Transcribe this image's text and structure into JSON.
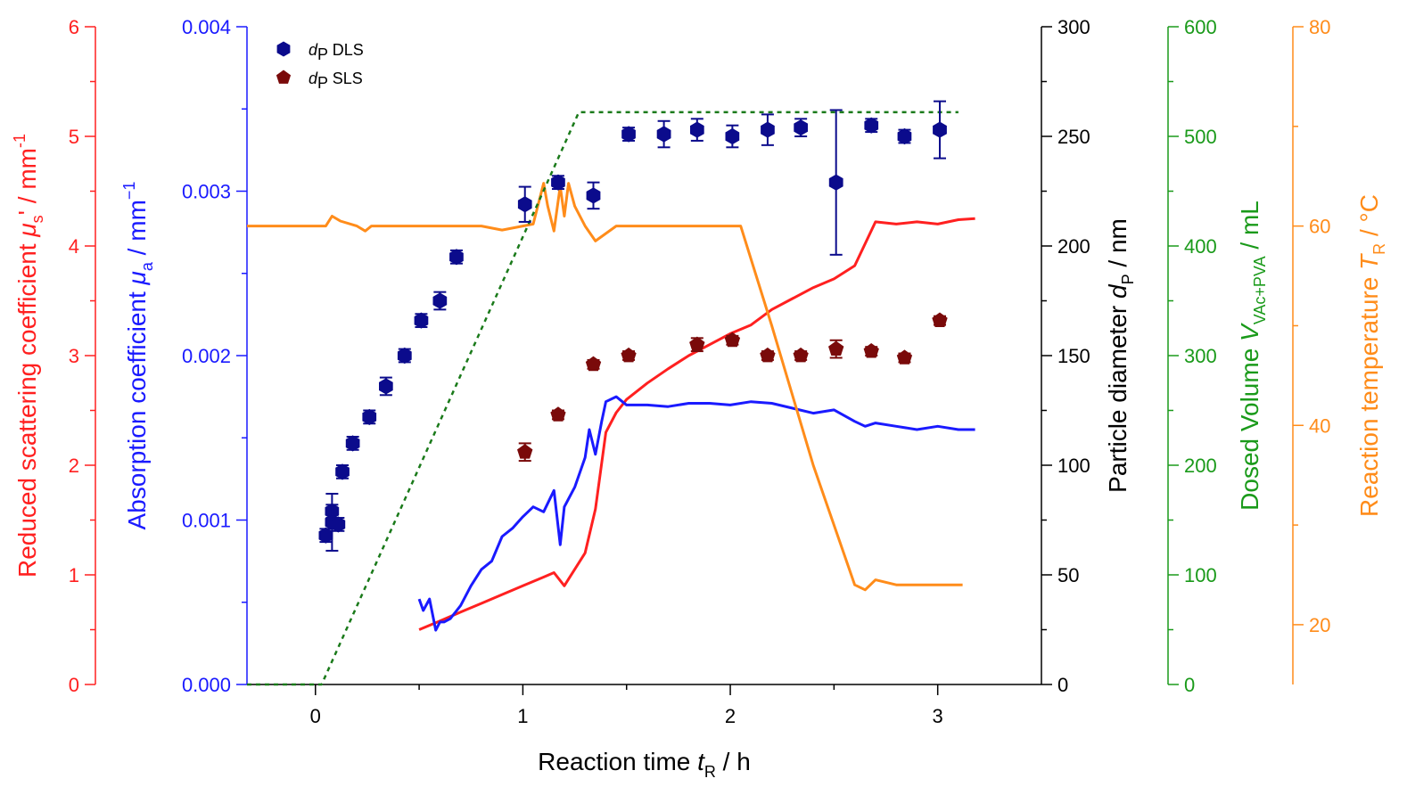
{
  "chart_data": {
    "type": "scatter",
    "title": "",
    "xaxis": {
      "label_main": "Reaction time ",
      "label_var": "t",
      "label_sub": "R",
      "label_unit": " / h",
      "range": [
        -0.33,
        3.5
      ],
      "ticks": [
        "0",
        "1",
        "2",
        "3"
      ]
    },
    "axes": {
      "scatter": {
        "label_main": "Reduced scattering coefficient ",
        "label_var": "μ",
        "label_sub": "s",
        "label_unit": "' / mm",
        "label_sup": "-1",
        "range": [
          0,
          6
        ],
        "ticks": [
          "0",
          "1",
          "2",
          "3",
          "4",
          "5",
          "6"
        ],
        "color": "#ff2020"
      },
      "absorption": {
        "label_main": "Absorption coefficient ",
        "label_var": "μ",
        "label_sub": "a",
        "label_unit": " / mm",
        "label_sup": "−1",
        "range": [
          0,
          0.004
        ],
        "ticks": [
          "0.000",
          "0.001",
          "0.002",
          "0.003",
          "0.004"
        ],
        "color": "#1a1aff"
      },
      "diameter": {
        "label_main": "Particle diameter ",
        "label_var": "d",
        "label_sub": "P",
        "label_unit": " / nm",
        "range": [
          0,
          300
        ],
        "ticks": [
          "0",
          "50",
          "100",
          "150",
          "200",
          "250",
          "300"
        ],
        "color": "#000000"
      },
      "volume": {
        "label_main": "Dosed Volume ",
        "label_var": "V",
        "label_sub": "VAc+PVA",
        "label_unit": " / mL",
        "range": [
          0,
          600
        ],
        "ticks": [
          "0",
          "100",
          "200",
          "300",
          "400",
          "500",
          "600"
        ],
        "color": "#1a9a1a"
      },
      "temperature": {
        "label_main": "Reaction temperature ",
        "label_var": "T",
        "label_sub": "R",
        "label_unit": " / °C",
        "range": [
          14,
          80
        ],
        "ticks": [
          "20",
          "40",
          "60",
          "80"
        ],
        "color": "#ff8c1a"
      }
    },
    "legend": {
      "placement": "top-left",
      "entries": [
        {
          "var": "d",
          "sub": "P",
          "text": " DLS",
          "color": "#0b0b8c",
          "marker": "hexagon"
        },
        {
          "var": "d",
          "sub": "P",
          "text": " SLS",
          "color": "#7a0a0a",
          "marker": "pentagon"
        }
      ]
    },
    "series": [
      {
        "key": "dls",
        "axis": "diameter",
        "color": "#0b0b8c",
        "marker": "hexagon",
        "points": [
          {
            "x": 0.05,
            "y": 68,
            "err": 3
          },
          {
            "x": 0.08,
            "y": 79,
            "err": 3
          },
          {
            "x": 0.08,
            "y": 74,
            "err": 13
          },
          {
            "x": 0.11,
            "y": 73,
            "err": 3
          },
          {
            "x": 0.13,
            "y": 97,
            "err": 3
          },
          {
            "x": 0.18,
            "y": 110,
            "err": 3
          },
          {
            "x": 0.26,
            "y": 122,
            "err": 3
          },
          {
            "x": 0.34,
            "y": 136,
            "err": 4
          },
          {
            "x": 0.43,
            "y": 150,
            "err": 3
          },
          {
            "x": 0.51,
            "y": 166,
            "err": 3
          },
          {
            "x": 0.6,
            "y": 175,
            "err": 4
          },
          {
            "x": 0.68,
            "y": 195,
            "err": 3
          },
          {
            "x": 1.01,
            "y": 219,
            "err": 8
          },
          {
            "x": 1.17,
            "y": 229,
            "err": 3
          },
          {
            "x": 1.34,
            "y": 223,
            "err": 6
          },
          {
            "x": 1.51,
            "y": 251,
            "err": 3
          },
          {
            "x": 1.68,
            "y": 251,
            "err": 6
          },
          {
            "x": 1.84,
            "y": 253,
            "err": 5
          },
          {
            "x": 2.01,
            "y": 250,
            "err": 5
          },
          {
            "x": 2.18,
            "y": 253,
            "err": 7
          },
          {
            "x": 2.34,
            "y": 254,
            "err": 4
          },
          {
            "x": 2.51,
            "y": 229,
            "err": 33
          },
          {
            "x": 2.68,
            "y": 255,
            "err": 3
          },
          {
            "x": 2.84,
            "y": 250,
            "err": 3
          },
          {
            "x": 3.01,
            "y": 253,
            "err": 13
          }
        ]
      },
      {
        "key": "sls",
        "axis": "diameter",
        "color": "#7a0a0a",
        "marker": "pentagon",
        "points": [
          {
            "x": 1.01,
            "y": 106,
            "err": 4
          },
          {
            "x": 1.17,
            "y": 123,
            "err": 2
          },
          {
            "x": 1.34,
            "y": 146,
            "err": 2
          },
          {
            "x": 1.51,
            "y": 150,
            "err": 2
          },
          {
            "x": 1.84,
            "y": 155,
            "err": 3
          },
          {
            "x": 2.01,
            "y": 157,
            "err": 2
          },
          {
            "x": 2.18,
            "y": 150,
            "err": 2
          },
          {
            "x": 2.34,
            "y": 150,
            "err": 2
          },
          {
            "x": 2.51,
            "y": 153,
            "err": 4
          },
          {
            "x": 2.68,
            "y": 152,
            "err": 2
          },
          {
            "x": 2.84,
            "y": 149,
            "err": 2
          },
          {
            "x": 3.01,
            "y": 166,
            "err": 2
          }
        ]
      },
      {
        "key": "scattering",
        "axis": "scatter",
        "color": "#ff2020",
        "style": "solid",
        "x": [
          0.5,
          0.6,
          0.7,
          0.8,
          0.9,
          1.0,
          1.1,
          1.15,
          1.2,
          1.3,
          1.35,
          1.4,
          1.45,
          1.5,
          1.6,
          1.7,
          1.8,
          1.9,
          2.0,
          2.1,
          2.2,
          2.3,
          2.4,
          2.5,
          2.6,
          2.7,
          2.8,
          2.9,
          3.0,
          3.1,
          3.18
        ],
        "y": [
          0.5,
          0.58,
          0.66,
          0.74,
          0.82,
          0.9,
          0.98,
          1.02,
          0.9,
          1.2,
          1.6,
          2.3,
          2.48,
          2.6,
          2.75,
          2.88,
          3.0,
          3.1,
          3.2,
          3.28,
          3.42,
          3.52,
          3.62,
          3.7,
          3.82,
          4.22,
          4.2,
          4.22,
          4.2,
          4.24,
          4.25
        ]
      },
      {
        "key": "absorption",
        "axis": "absorption",
        "color": "#1a1aff",
        "style": "solid",
        "x": [
          0.5,
          0.52,
          0.55,
          0.58,
          0.6,
          0.62,
          0.65,
          0.7,
          0.75,
          0.8,
          0.85,
          0.9,
          0.95,
          1.0,
          1.05,
          1.1,
          1.15,
          1.18,
          1.2,
          1.25,
          1.3,
          1.32,
          1.35,
          1.38,
          1.4,
          1.45,
          1.5,
          1.6,
          1.7,
          1.8,
          1.9,
          2.0,
          2.1,
          2.2,
          2.3,
          2.4,
          2.5,
          2.6,
          2.65,
          2.7,
          2.8,
          2.9,
          3.0,
          3.1,
          3.18
        ],
        "y": [
          0.00052,
          0.00045,
          0.00052,
          0.00033,
          0.00038,
          0.00038,
          0.0004,
          0.00048,
          0.0006,
          0.0007,
          0.00075,
          0.0009,
          0.00095,
          0.00102,
          0.00108,
          0.00105,
          0.00118,
          0.00085,
          0.00108,
          0.0012,
          0.00138,
          0.00155,
          0.0014,
          0.0016,
          0.00172,
          0.00175,
          0.0017,
          0.0017,
          0.00169,
          0.00171,
          0.00171,
          0.0017,
          0.00172,
          0.00171,
          0.00168,
          0.00165,
          0.00167,
          0.0016,
          0.00157,
          0.00159,
          0.00157,
          0.00155,
          0.00157,
          0.00155,
          0.00155
        ]
      },
      {
        "key": "temperature",
        "axis": "temperature",
        "color": "#ff8c1a",
        "style": "solid",
        "x": [
          -0.33,
          0.0,
          0.05,
          0.08,
          0.12,
          0.2,
          0.24,
          0.27,
          0.4,
          0.6,
          0.8,
          0.9,
          1.0,
          1.05,
          1.1,
          1.12,
          1.15,
          1.18,
          1.2,
          1.22,
          1.25,
          1.3,
          1.35,
          1.45,
          1.6,
          1.8,
          2.0,
          2.05,
          2.2,
          2.4,
          2.6,
          2.65,
          2.7,
          2.8,
          3.0,
          3.12
        ],
        "y": [
          60,
          60,
          60,
          61,
          60.5,
          60,
          59.5,
          60,
          60,
          60,
          60,
          59.6,
          60,
          60.2,
          64.3,
          62,
          59.5,
          64,
          61,
          64.3,
          62,
          60,
          58.5,
          60,
          60,
          60,
          60,
          60,
          50,
          36,
          24,
          23.5,
          24.5,
          24,
          24,
          24
        ]
      },
      {
        "key": "volume",
        "axis": "volume",
        "color": "#1a7a1a",
        "style": "dashed",
        "x": [
          -0.33,
          0.03,
          1.27,
          3.1
        ],
        "y": [
          0,
          0,
          522,
          522
        ]
      }
    ]
  }
}
